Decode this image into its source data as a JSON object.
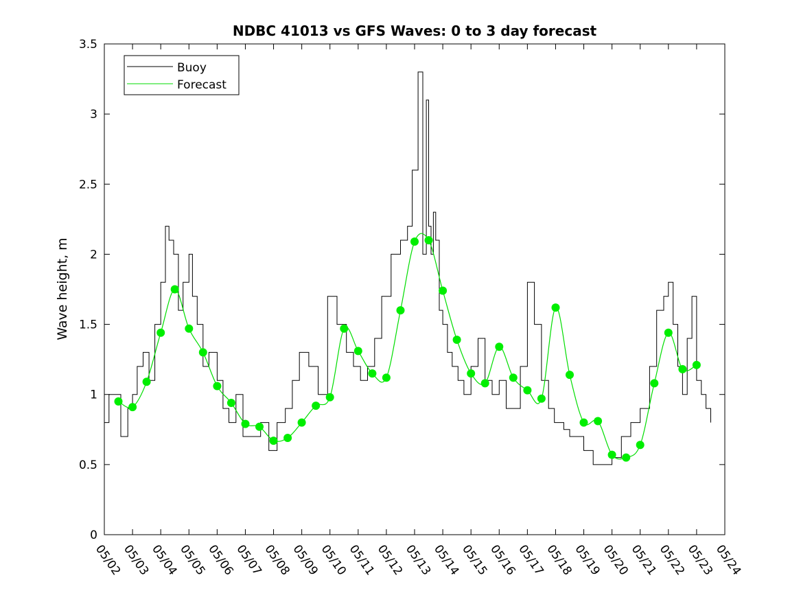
{
  "chart_data": {
    "type": "line",
    "title": "NDBC 41013 vs GFS Waves: 0 to 3 day forecast",
    "xlabel": "",
    "ylabel": "Wave height, m",
    "xlim": [
      "05/02",
      "05/24"
    ],
    "ylim": [
      0,
      3.5
    ],
    "x_ticks": [
      "05/02",
      "05/03",
      "05/04",
      "05/05",
      "05/06",
      "05/07",
      "05/08",
      "05/09",
      "05/10",
      "05/11",
      "05/12",
      "05/13",
      "05/14",
      "05/15",
      "05/16",
      "05/17",
      "05/18",
      "05/19",
      "05/20",
      "05/21",
      "05/22",
      "05/23",
      "05/24"
    ],
    "y_ticks": [
      "0",
      "0.5",
      "1",
      "1.5",
      "2",
      "2.5",
      "3",
      "3.5"
    ],
    "grid": false,
    "legend_position": "top-left",
    "colors": {
      "buoy": "#000000",
      "forecast": "#00dd00",
      "forecast_marker": "#00ee00"
    },
    "series": [
      {
        "name": "Buoy",
        "x": [
          "05/02 00:00",
          "05/02 04:00",
          "05/02 08:00",
          "05/02 14:00",
          "05/02 20:00",
          "05/03 00:00",
          "05/03 04:00",
          "05/03 09:00",
          "05/03 14:00",
          "05/03 19:00",
          "05/04 00:00",
          "05/04 04:00",
          "05/04 07:00",
          "05/04 11:00",
          "05/04 15:00",
          "05/04 19:00",
          "05/05 00:00",
          "05/05 03:00",
          "05/05 07:00",
          "05/05 12:00",
          "05/05 17:00",
          "05/06 00:00",
          "05/06 05:00",
          "05/06 10:00",
          "05/06 16:00",
          "05/06 22:00",
          "05/07 06:00",
          "05/07 13:00",
          "05/07 20:00",
          "05/08 03:00",
          "05/08 10:00",
          "05/08 16:00",
          "05/08 22:00",
          "05/09 06:00",
          "05/09 14:00",
          "05/09 22:00",
          "05/10 06:00",
          "05/10 14:00",
          "05/10 20:00",
          "05/11 02:00",
          "05/11 08:00",
          "05/11 14:00",
          "05/11 20:00",
          "05/12 04:00",
          "05/12 12:00",
          "05/12 18:00",
          "05/12 22:00",
          "05/13 03:00",
          "05/13 07:00",
          "05/13 10:00",
          "05/13 12:00",
          "05/13 14:00",
          "05/13 16:00",
          "05/13 18:00",
          "05/13 21:00",
          "05/14 00:00",
          "05/14 04:00",
          "05/14 08:00",
          "05/14 13:00",
          "05/14 18:00",
          "05/15 00:00",
          "05/15 06:00",
          "05/15 12:00",
          "05/15 18:00",
          "05/16 00:00",
          "05/16 06:00",
          "05/16 12:00",
          "05/16 18:00",
          "05/17 00:00",
          "05/17 06:00",
          "05/17 12:00",
          "05/17 18:00",
          "05/17 23:00",
          "05/18 03:00",
          "05/18 07:00",
          "05/18 12:00",
          "05/18 17:00",
          "05/19 00:00",
          "05/19 08:00",
          "05/19 16:00",
          "05/20 00:00",
          "05/20 08:00",
          "05/20 16:00",
          "05/21 00:00",
          "05/21 08:00",
          "05/21 14:00",
          "05/21 20:00",
          "05/22 00:00",
          "05/22 04:00",
          "05/22 08:00",
          "05/22 12:00",
          "05/22 16:00",
          "05/22 20:00",
          "05/23 00:00",
          "05/23 04:00",
          "05/23 08:00",
          "05/23 12:00"
        ],
        "y": [
          0.8,
          1.0,
          1.0,
          0.7,
          0.9,
          1.0,
          1.2,
          1.3,
          1.1,
          1.5,
          1.8,
          2.2,
          2.1,
          2.0,
          1.6,
          1.8,
          2.0,
          1.7,
          1.5,
          1.2,
          1.3,
          1.1,
          0.9,
          0.8,
          1.0,
          0.7,
          0.7,
          0.8,
          0.6,
          0.8,
          0.9,
          1.1,
          1.3,
          1.2,
          1.0,
          1.7,
          1.5,
          1.3,
          1.2,
          1.1,
          1.2,
          1.4,
          1.7,
          2.0,
          2.1,
          2.2,
          2.6,
          3.3,
          2.0,
          3.1,
          2.2,
          2.0,
          2.3,
          2.1,
          1.6,
          1.5,
          1.3,
          1.2,
          1.1,
          1.0,
          1.2,
          1.4,
          1.1,
          1.0,
          1.1,
          0.9,
          0.9,
          1.2,
          1.8,
          1.5,
          1.1,
          0.9,
          0.8,
          0.8,
          0.75,
          0.7,
          0.7,
          0.6,
          0.5,
          0.5,
          0.55,
          0.7,
          0.8,
          0.9,
          1.2,
          1.6,
          1.7,
          1.8,
          1.5,
          1.2,
          1.0,
          1.4,
          1.7,
          1.1,
          1.0,
          0.9,
          0.8
        ]
      },
      {
        "name": "Forecast",
        "x": [
          "05/02 12:00",
          "05/03 00:00",
          "05/03 12:00",
          "05/04 00:00",
          "05/04 12:00",
          "05/05 00:00",
          "05/05 12:00",
          "05/06 00:00",
          "05/06 12:00",
          "05/07 00:00",
          "05/07 12:00",
          "05/08 00:00",
          "05/08 12:00",
          "05/09 00:00",
          "05/09 12:00",
          "05/10 00:00",
          "05/10 12:00",
          "05/11 00:00",
          "05/11 12:00",
          "05/12 00:00",
          "05/12 12:00",
          "05/13 00:00",
          "05/13 12:00",
          "05/14 00:00",
          "05/14 12:00",
          "05/15 00:00",
          "05/15 12:00",
          "05/16 00:00",
          "05/16 12:00",
          "05/17 00:00",
          "05/17 12:00",
          "05/18 00:00",
          "05/18 12:00",
          "05/19 00:00",
          "05/19 12:00",
          "05/20 00:00",
          "05/20 12:00",
          "05/21 00:00",
          "05/21 12:00",
          "05/22 00:00",
          "05/22 12:00",
          "05/23 00:00"
        ],
        "y": [
          0.95,
          0.91,
          1.09,
          1.44,
          1.75,
          1.47,
          1.3,
          1.06,
          0.94,
          0.79,
          0.77,
          0.67,
          0.69,
          0.8,
          0.92,
          0.98,
          1.47,
          1.31,
          1.15,
          1.12,
          1.6,
          2.09,
          2.1,
          1.74,
          1.39,
          1.15,
          1.08,
          1.34,
          1.12,
          1.03,
          0.97,
          1.62,
          1.14,
          0.8,
          0.81,
          0.57,
          0.55,
          0.64,
          1.08,
          1.44,
          1.18,
          1.21
        ]
      }
    ]
  }
}
